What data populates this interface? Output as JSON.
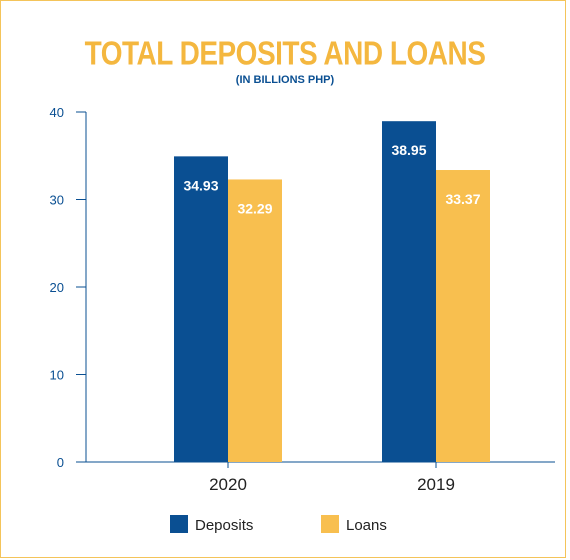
{
  "chart_data": {
    "type": "bar",
    "title": "TOTAL DEPOSITS AND LOANS",
    "subtitle": "(IN BILLIONS PHP)",
    "categories": [
      "2020",
      "2019"
    ],
    "series": [
      {
        "name": "Deposits",
        "values": [
          34.93,
          38.95
        ],
        "labels": [
          "34.93",
          "38.95"
        ]
      },
      {
        "name": "Loans",
        "values": [
          32.29,
          33.37
        ],
        "labels": [
          "32.29",
          "33.37"
        ]
      }
    ],
    "y_ticks": [
      "0",
      "10",
      "20",
      "30",
      "40"
    ],
    "ylim": [
      0,
      40
    ],
    "grid": false,
    "legend_position": "bottom"
  },
  "colors": {
    "deposits": "#0a4f92",
    "loans": "#f8bf4f",
    "axis": "#0a4f92",
    "title": "#f4b73f"
  }
}
